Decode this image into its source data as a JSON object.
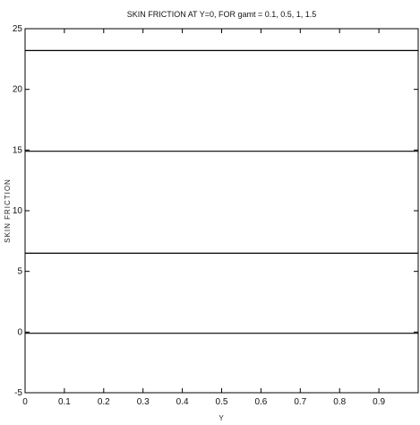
{
  "chart_data": {
    "type": "line",
    "title": "SKIN FRICTION AT Y=0, FOR gamt = 0.1, 0.5, 1, 1.5",
    "xlabel": "Y",
    "ylabel": "SKIN FRICTION",
    "xlim": [
      0,
      1
    ],
    "ylim": [
      -5,
      25
    ],
    "x_ticks": [
      "0",
      "0.1",
      "0.2",
      "0.3",
      "0.4",
      "0.5",
      "0.6",
      "0.7",
      "0.8",
      "0.9"
    ],
    "y_ticks": [
      "-5",
      "0",
      "5",
      "10",
      "15",
      "20",
      "25"
    ],
    "grid": false,
    "series": [
      {
        "x": [
          0,
          1
        ],
        "values": [
          23.2,
          23.2
        ],
        "color": "#000000"
      },
      {
        "x": [
          0,
          1
        ],
        "values": [
          14.9,
          14.9
        ],
        "color": "#000000"
      },
      {
        "x": [
          0,
          1
        ],
        "values": [
          6.5,
          6.5
        ],
        "color": "#000000"
      },
      {
        "x": [
          0,
          1
        ],
        "values": [
          -0.1,
          -0.1
        ],
        "color": "#000000"
      }
    ]
  }
}
